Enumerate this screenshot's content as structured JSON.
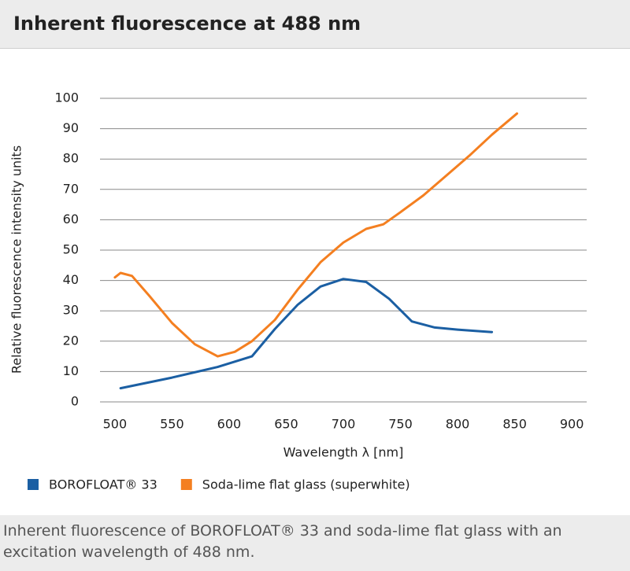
{
  "chart_data": {
    "type": "line",
    "title": "Inherent fluorescence at 488 nm",
    "x_label": "Wavelength λ [nm]",
    "y_label": "Relative fluorescence intensity units",
    "caption": "Inherent fluorescence of BOROFLOAT® 33 and soda-lime flat glass with an excitation wavelength of 488 nm.",
    "xlim": [
      487,
      913
    ],
    "xticks": [
      500,
      550,
      600,
      650,
      700,
      750,
      800,
      850,
      900
    ],
    "ylim": [
      0,
      100
    ],
    "yticks": [
      0,
      10,
      20,
      30,
      40,
      50,
      60,
      70,
      80,
      90,
      100
    ],
    "grid": true,
    "legend": "bottom",
    "series": [
      {
        "name": "BOROFLOAT® 33",
        "color": "#1b5fa3",
        "x": [
          505,
          550,
          590,
          620,
          640,
          660,
          680,
          700,
          720,
          740,
          760,
          780,
          800,
          830
        ],
        "values": [
          4.5,
          8,
          11.5,
          15,
          24,
          32,
          38,
          40.5,
          39.5,
          34,
          26.5,
          24.5,
          23.8,
          23
        ]
      },
      {
        "name": "Soda-lime flat glass (superwhite)",
        "color": "#f47f20",
        "x": [
          500,
          505,
          515,
          530,
          550,
          570,
          590,
          605,
          620,
          640,
          660,
          680,
          700,
          720,
          735,
          750,
          770,
          790,
          810,
          830,
          852
        ],
        "values": [
          41,
          42.5,
          41.5,
          35,
          26,
          19,
          15,
          16.5,
          20,
          27,
          37,
          46,
          52.5,
          57,
          58.5,
          62.5,
          68,
          74.5,
          81,
          88,
          95
        ]
      }
    ]
  }
}
